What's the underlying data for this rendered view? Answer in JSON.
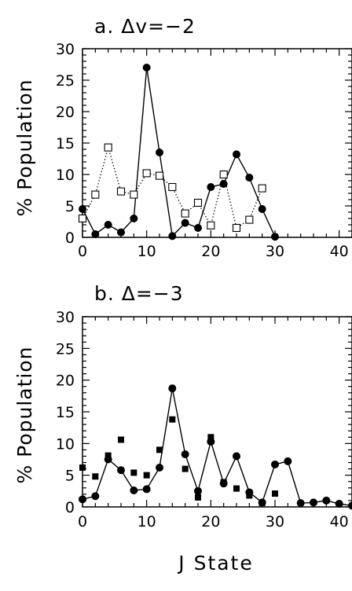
{
  "chart_data": [
    {
      "type": "line",
      "title": "a. Δv=−2",
      "xlabel": "",
      "ylabel": "% Population",
      "xlim": [
        0,
        42
      ],
      "ylim": [
        0,
        30
      ],
      "xticks": [
        0,
        10,
        20,
        30,
        40
      ],
      "yticks": [
        0,
        5,
        10,
        15,
        20,
        25,
        30
      ],
      "xtick_labels": [
        "0",
        "10",
        "20",
        "30",
        "40"
      ],
      "ytick_labels": [
        "0",
        "5",
        "10",
        "15",
        "20",
        "25",
        "30"
      ],
      "grid": false,
      "series": [
        {
          "marker": "filled-circle",
          "line": "solid",
          "x": [
            0,
            2,
            4,
            6,
            8,
            10,
            12,
            14,
            16,
            18,
            20,
            22,
            24,
            26,
            28,
            30
          ],
          "y": [
            4.5,
            0.5,
            2.0,
            0.8,
            3.0,
            27.0,
            13.5,
            0.2,
            2.3,
            1.5,
            8.0,
            8.5,
            13.2,
            9.5,
            4.5,
            0.1
          ]
        },
        {
          "marker": "open-square",
          "line": "dotted",
          "x": [
            0,
            2,
            4,
            6,
            8,
            10,
            12,
            14,
            16,
            18,
            20,
            22,
            24,
            26,
            28
          ],
          "y": [
            3.0,
            6.8,
            14.3,
            7.3,
            6.8,
            10.2,
            9.8,
            8.0,
            3.8,
            5.5,
            1.9,
            10.0,
            1.5,
            2.8,
            7.8
          ]
        }
      ]
    },
    {
      "type": "line",
      "title": "b. Δ=−3",
      "xlabel": "J State",
      "ylabel": "% Population",
      "xlim": [
        0,
        42
      ],
      "ylim": [
        0,
        30
      ],
      "xticks": [
        0,
        10,
        20,
        30,
        40
      ],
      "yticks": [
        0,
        5,
        10,
        15,
        20,
        25,
        30
      ],
      "xtick_labels": [
        "0",
        "10",
        "20",
        "30",
        "40"
      ],
      "ytick_labels": [
        "0",
        "5",
        "10",
        "15",
        "20",
        "25",
        "30"
      ],
      "grid": false,
      "series": [
        {
          "marker": "filled-circle",
          "line": "solid",
          "x": [
            0,
            2,
            4,
            6,
            8,
            10,
            12,
            14,
            16,
            18,
            20,
            22,
            24,
            26,
            28,
            30,
            32,
            34,
            36,
            38,
            40,
            42
          ],
          "y": [
            1.2,
            1.7,
            7.5,
            5.8,
            2.6,
            2.8,
            6.2,
            18.7,
            8.3,
            2.5,
            10.3,
            3.7,
            8.0,
            2.3,
            0.7,
            6.7,
            7.2,
            0.6,
            0.7,
            1.0,
            0.5,
            0.2
          ]
        },
        {
          "marker": "filled-square",
          "line": "none",
          "x": [
            0,
            2,
            4,
            6,
            8,
            10,
            12,
            14,
            16,
            18,
            20,
            22,
            24,
            26,
            28,
            30
          ],
          "y": [
            6.2,
            4.8,
            8.1,
            10.6,
            5.4,
            5.0,
            9.0,
            13.8,
            6.0,
            1.5,
            11.0,
            3.9,
            2.9,
            1.8,
            0.6,
            2.1
          ]
        }
      ]
    }
  ]
}
